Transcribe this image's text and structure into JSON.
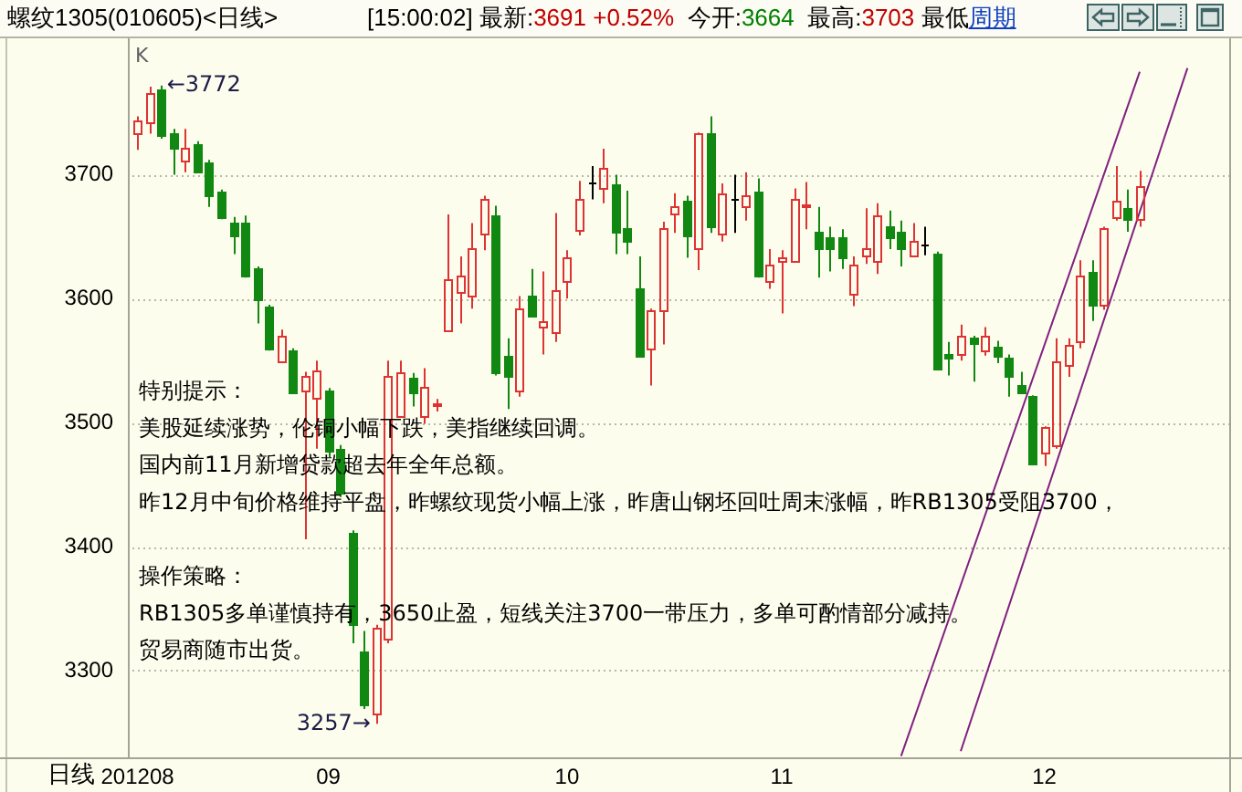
{
  "chart_data": {
    "type": "candlestick",
    "title": "螺纹1305(010605)<日线>",
    "subtitle": "[15:00:02] 最新:3691 +0.52%  今开:3664  最高:3703 最低",
    "xlabel": "日线",
    "categories": [
      "201208",
      null,
      null,
      null,
      null,
      null,
      null,
      null,
      null,
      null,
      null,
      null,
      null,
      null,
      null,
      null,
      "09",
      null,
      null,
      null,
      null,
      null,
      null,
      null,
      null,
      null,
      null,
      null,
      null,
      null,
      null,
      null,
      null,
      null,
      null,
      null,
      "10",
      null,
      null,
      null,
      null,
      null,
      null,
      null,
      null,
      null,
      null,
      null,
      null,
      null,
      null,
      null,
      null,
      null,
      "11",
      null,
      null,
      null,
      null,
      null,
      null,
      null,
      null,
      null,
      null,
      null,
      null,
      null,
      null,
      null,
      null,
      null,
      null,
      null,
      null,
      null,
      "12",
      null,
      null,
      null,
      null,
      null,
      null,
      null,
      null,
      null,
      null,
      null,
      null,
      null,
      null,
      null
    ],
    "ohlc": [
      [
        3733,
        3747,
        3720,
        3744
      ],
      [
        3742,
        3771,
        3733,
        3766
      ],
      [
        3769,
        3772,
        3729,
        3732
      ],
      [
        3734,
        3737,
        3700,
        3722
      ],
      [
        3712,
        3737,
        3702,
        3722
      ],
      [
        3724,
        3727,
        3702,
        3703
      ],
      [
        3710,
        3712,
        3674,
        3684
      ],
      [
        3686,
        3688,
        3664,
        3666
      ],
      [
        3661,
        3666,
        3636,
        3651
      ],
      [
        3661,
        3667,
        3617,
        3619
      ],
      [
        3624,
        3626,
        3580,
        3599
      ],
      [
        3594,
        3595,
        3558,
        3560
      ],
      [
        3550,
        3575,
        3548,
        3570
      ],
      [
        3558,
        3560,
        3524,
        3525
      ],
      [
        3526,
        3541,
        3406,
        3537
      ],
      [
        3520,
        3550,
        3479,
        3542
      ],
      [
        3526,
        3528,
        3472,
        3478
      ],
      [
        3479,
        3482,
        3440,
        3443
      ],
      [
        3411,
        3413,
        3322,
        3337
      ],
      [
        3316,
        3332,
        3269,
        3273
      ],
      [
        3266,
        3337,
        3257,
        3334
      ],
      [
        3325,
        3550,
        3322,
        3538
      ],
      [
        3506,
        3550,
        3504,
        3540
      ],
      [
        3536,
        3540,
        3513,
        3524
      ],
      [
        3505,
        3544,
        3499,
        3529
      ],
      [
        3514,
        3519,
        3509,
        3515
      ],
      [
        3575,
        3668,
        3575,
        3615
      ],
      [
        3605,
        3634,
        3580,
        3619
      ],
      [
        3602,
        3661,
        3592,
        3640
      ],
      [
        3653,
        3683,
        3639,
        3680
      ],
      [
        3667,
        3675,
        3538,
        3541
      ],
      [
        3554,
        3568,
        3511,
        3537
      ],
      [
        3526,
        3602,
        3521,
        3592
      ],
      [
        3602,
        3624,
        3585,
        3586
      ],
      [
        3577,
        3622,
        3555,
        3582
      ],
      [
        3573,
        3669,
        3565,
        3607
      ],
      [
        3614,
        3639,
        3600,
        3634
      ],
      [
        3656,
        3695,
        3651,
        3680
      ],
      [
        3694,
        3707,
        3680,
        3694
      ],
      [
        3690,
        3721,
        3677,
        3705
      ],
      [
        3692,
        3700,
        3636,
        3654
      ],
      [
        3657,
        3687,
        3636,
        3646
      ],
      [
        3609,
        3634,
        3554,
        3554
      ],
      [
        3560,
        3592,
        3530,
        3590
      ],
      [
        3590,
        3662,
        3563,
        3657
      ],
      [
        3669,
        3685,
        3653,
        3675
      ],
      [
        3679,
        3683,
        3633,
        3651
      ],
      [
        3640,
        3734,
        3623,
        3733
      ],
      [
        3733,
        3747,
        3653,
        3659
      ],
      [
        3652,
        3693,
        3646,
        3685
      ],
      [
        3680,
        3700,
        3653,
        3680
      ],
      [
        3674,
        3702,
        3663,
        3683
      ],
      [
        3687,
        3697,
        3617,
        3618
      ],
      [
        3614,
        3640,
        3608,
        3628
      ],
      [
        3630,
        3639,
        3588,
        3634
      ],
      [
        3631,
        3689,
        3630,
        3680
      ],
      [
        3675,
        3694,
        3656,
        3676
      ],
      [
        3654,
        3674,
        3617,
        3641
      ],
      [
        3650,
        3658,
        3622,
        3641
      ],
      [
        3649,
        3656,
        3624,
        3633
      ],
      [
        3604,
        3634,
        3594,
        3628
      ],
      [
        3635,
        3673,
        3628,
        3640
      ],
      [
        3631,
        3677,
        3620,
        3667
      ],
      [
        3659,
        3671,
        3640,
        3650
      ],
      [
        3654,
        3663,
        3626,
        3641
      ],
      [
        3635,
        3661,
        3634,
        3646
      ],
      [
        3644,
        3658,
        3635,
        3644
      ],
      [
        3636,
        3638,
        3542,
        3543
      ],
      [
        3555,
        3565,
        3538,
        3553
      ],
      [
        3555,
        3579,
        3550,
        3570
      ],
      [
        3569,
        3570,
        3533,
        3564
      ],
      [
        3558,
        3577,
        3554,
        3570
      ],
      [
        3561,
        3566,
        3548,
        3554
      ],
      [
        3553,
        3555,
        3521,
        3537
      ],
      [
        3531,
        3541,
        3524,
        3525
      ],
      [
        3521,
        3522,
        3467,
        3467
      ],
      [
        3476,
        3497,
        3465,
        3496
      ],
      [
        3482,
        3568,
        3479,
        3550
      ],
      [
        3546,
        3568,
        3537,
        3563
      ],
      [
        3565,
        3631,
        3560,
        3619
      ],
      [
        3622,
        3631,
        3582,
        3595
      ],
      [
        3595,
        3658,
        3591,
        3657
      ],
      [
        3666,
        3707,
        3663,
        3679
      ],
      [
        3673,
        3688,
        3654,
        3665
      ],
      [
        3664,
        3703,
        3658,
        3691
      ],
      null,
      null,
      null,
      null,
      null,
      null,
      null
    ],
    "colors": [
      "#dd3333",
      "#dd3333",
      "#118811",
      "#118811",
      "#dd3333",
      "#118811",
      "#118811",
      "#118811",
      "#118811",
      "#118811",
      "#118811",
      "#118811",
      "#dd3333",
      "#118811",
      "#dd3333",
      "#dd3333",
      "#118811",
      "#118811",
      "#118811",
      "#118811",
      "#dd3333",
      "#dd3333",
      "#dd3333",
      "#118811",
      "#dd3333",
      "#dd3333",
      "#dd3333",
      "#dd3333",
      "#dd3333",
      "#dd3333",
      "#118811",
      "#118811",
      "#dd3333",
      "#118811",
      "#dd3333",
      "#dd3333",
      "#dd3333",
      "#dd3333",
      "#000000",
      "#dd3333",
      "#118811",
      "#118811",
      "#118811",
      "#dd3333",
      "#dd3333",
      "#dd3333",
      "#118811",
      "#dd3333",
      "#118811",
      "#dd3333",
      "#000000",
      "#dd3333",
      "#118811",
      "#dd3333",
      "#dd3333",
      "#dd3333",
      "#dd3333",
      "#118811",
      "#118811",
      "#118811",
      "#dd3333",
      "#dd3333",
      "#dd3333",
      "#118811",
      "#118811",
      "#dd3333",
      "#000000",
      "#118811",
      "#118811",
      "#dd3333",
      "#118811",
      "#dd3333",
      "#118811",
      "#118811",
      "#118811",
      "#118811",
      "#dd3333",
      "#dd3333",
      "#dd3333",
      "#dd3333",
      "#118811",
      "#dd3333",
      "#dd3333",
      "#118811",
      "#dd3333",
      null,
      null,
      null,
      null,
      null,
      null,
      null
    ],
    "series": [
      {
        "type": "line",
        "color": "#802080",
        "values": [
          null,
          null,
          null,
          null,
          null,
          null,
          null,
          null,
          null,
          null,
          null,
          null,
          null,
          null,
          null,
          null,
          null,
          null,
          null,
          null,
          null,
          null,
          null,
          null,
          null,
          null,
          null,
          null,
          null,
          null,
          null,
          null,
          null,
          null,
          null,
          null,
          null,
          null,
          null,
          null,
          null,
          null,
          null,
          null,
          null,
          null,
          null,
          null,
          null,
          null,
          null,
          null,
          null,
          null,
          null,
          null,
          null,
          null,
          null,
          null,
          null,
          null,
          null,
          null,
          3231,
          null,
          null,
          null,
          null,
          null,
          null,
          null,
          null,
          null,
          null,
          null,
          null,
          null,
          null,
          null,
          null,
          null,
          null,
          null,
          3783,
          null,
          null,
          null,
          null,
          null,
          null,
          null
        ]
      },
      {
        "type": "line",
        "color": "#802080",
        "values": [
          null,
          null,
          null,
          null,
          null,
          null,
          null,
          null,
          null,
          null,
          null,
          null,
          null,
          null,
          null,
          null,
          null,
          null,
          null,
          null,
          null,
          null,
          null,
          null,
          null,
          null,
          null,
          null,
          null,
          null,
          null,
          null,
          null,
          null,
          null,
          null,
          null,
          null,
          null,
          null,
          null,
          null,
          null,
          null,
          null,
          null,
          null,
          null,
          null,
          null,
          null,
          null,
          null,
          null,
          null,
          null,
          null,
          null,
          null,
          null,
          null,
          null,
          null,
          null,
          null,
          null,
          null,
          null,
          null,
          3235,
          null,
          null,
          null,
          null,
          null,
          null,
          null,
          null,
          null,
          null,
          null,
          null,
          null,
          null,
          null,
          null,
          null,
          null,
          3786,
          null,
          null,
          null
        ]
      }
    ],
    "ylim": [
      3230,
      3810
    ],
    "yticks": [
      3300,
      3400,
      3500,
      3600,
      3700
    ],
    "grid": "y",
    "annotations": [
      "K",
      "特别提示：",
      "美股延续涨势，伦铜小幅下跌，美指继续回调。",
      "国内前11月新增贷款超去年全年总额。",
      "昨12月中旬价格维持平盘，昨螺纹现货小幅上涨，昨唐山钢坯回吐周末涨幅，昨RB1305受阻3700，",
      "操作策略：",
      "RB1305多单谨慎持有，3650止盈，短线关注3700一带压力，多单可酌情部分减持。",
      "贸易商随市出货。",
      "周期",
      "←3772",
      "3257→"
    ]
  }
}
